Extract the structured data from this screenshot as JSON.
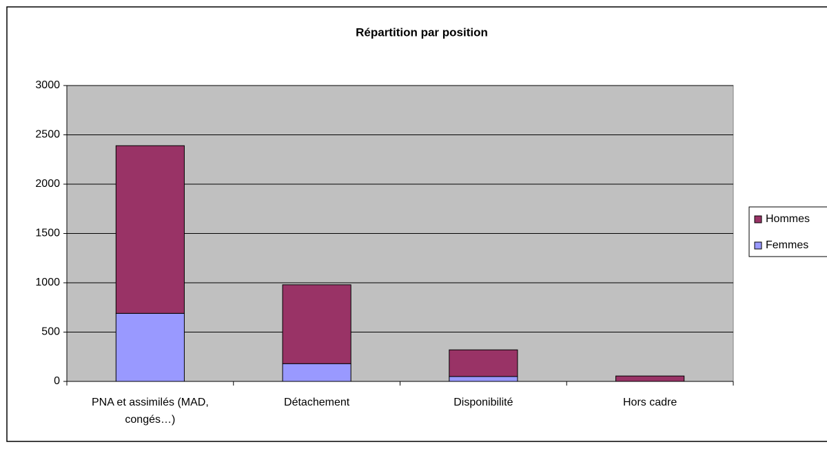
{
  "chart_data": {
    "type": "bar",
    "stacked": true,
    "title": "Répartition par position",
    "categories": [
      "PNA et assimilés (MAD, congés…)",
      "Détachement",
      "Disponibilité",
      "Hors cadre"
    ],
    "series": [
      {
        "name": "Femmes",
        "color": "#9999ff",
        "values": [
          690,
          180,
          50,
          0
        ]
      },
      {
        "name": "Hommes",
        "color": "#993366",
        "values": [
          1700,
          800,
          270,
          55
        ]
      }
    ],
    "ylim": [
      0,
      3000
    ],
    "yticks": [
      0,
      500,
      1000,
      1500,
      2000,
      2500,
      3000
    ],
    "grid": true,
    "legend": "right"
  }
}
